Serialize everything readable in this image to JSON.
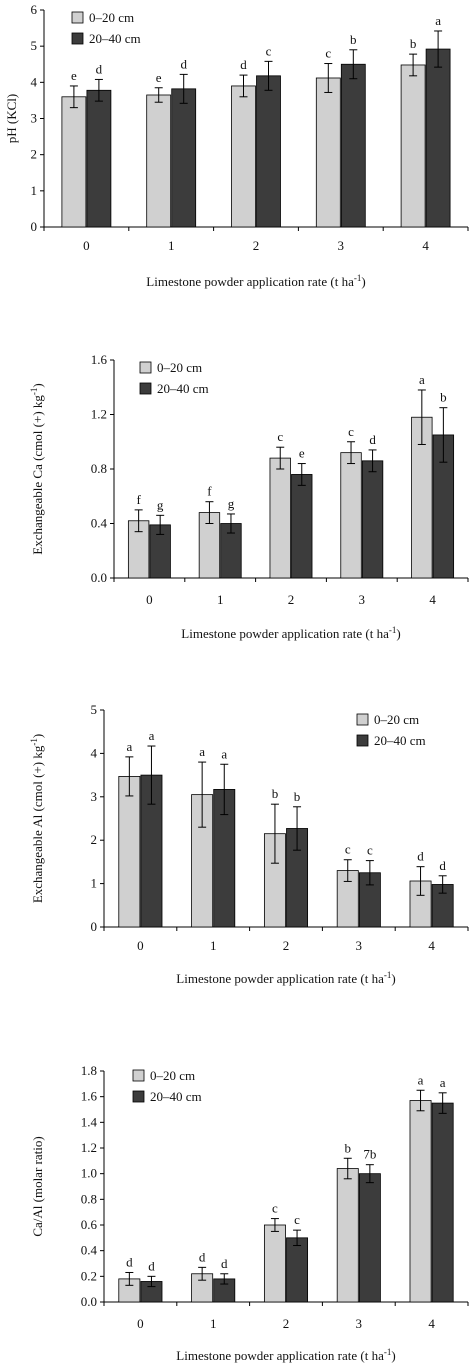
{
  "colors": {
    "series_1": "#d0d0d0",
    "series_2": "#3c3c3c",
    "axis": "#000000"
  },
  "chart_data": [
    {
      "type": "bar",
      "ylabel": "pH (KCl)",
      "xlabel": "Limestone powder application rate (t ha",
      "xlabel_sup": "-1",
      "xlabel_end": ")",
      "categories": [
        "0",
        "1",
        "2",
        "3",
        "4"
      ],
      "ylim": [
        0,
        6
      ],
      "yticks": [
        "0",
        "1",
        "2",
        "3",
        "4",
        "5",
        "6"
      ],
      "legend_position": "top-left",
      "series": [
        {
          "name": "0–20 cm",
          "values": [
            3.6,
            3.65,
            3.9,
            4.12,
            4.48
          ],
          "errors": [
            0.3,
            0.2,
            0.3,
            0.4,
            0.3
          ],
          "letters": [
            "e",
            "e",
            "d",
            "c",
            "b"
          ]
        },
        {
          "name": "20–40 cm",
          "values": [
            3.78,
            3.82,
            4.18,
            4.5,
            4.92
          ],
          "errors": [
            0.3,
            0.4,
            0.4,
            0.4,
            0.5
          ],
          "letters": [
            "d",
            "d",
            "c",
            "b",
            "a"
          ]
        }
      ]
    },
    {
      "type": "bar",
      "ylabel": "Exchangeable Ca (cmol (+) kg",
      "ylabel_sup": "-1",
      "ylabel_end": ")",
      "xlabel": "Limestone powder application rate (t ha",
      "xlabel_sup": "-1",
      "xlabel_end": ")",
      "categories": [
        "0",
        "1",
        "2",
        "3",
        "4"
      ],
      "ylim": [
        0,
        1.6
      ],
      "yticks": [
        "0.0",
        "0.4",
        "0.8",
        "1.2",
        "1.6"
      ],
      "legend_position": "top-left",
      "series": [
        {
          "name": "0–20 cm",
          "values": [
            0.42,
            0.48,
            0.88,
            0.92,
            1.18
          ],
          "errors": [
            0.08,
            0.08,
            0.08,
            0.08,
            0.2
          ],
          "letters": [
            "f",
            "f",
            "c",
            "c",
            "a"
          ]
        },
        {
          "name": "20–40 cm",
          "values": [
            0.39,
            0.4,
            0.76,
            0.86,
            1.05
          ],
          "errors": [
            0.07,
            0.07,
            0.08,
            0.08,
            0.2
          ],
          "letters": [
            "g",
            "g",
            "e",
            "d",
            "b"
          ]
        }
      ]
    },
    {
      "type": "bar",
      "ylabel": "Exchangeable Al (cmol (+) kg",
      "ylabel_sup": "-1",
      "ylabel_end": ")",
      "xlabel": "Limestone powder application rate (t ha",
      "xlabel_sup": "-1",
      "xlabel_end": ")",
      "categories": [
        "0",
        "1",
        "2",
        "3",
        "4"
      ],
      "ylim": [
        0,
        5
      ],
      "yticks": [
        "0",
        "1",
        "2",
        "3",
        "4",
        "5"
      ],
      "legend_position": "top-right",
      "series": [
        {
          "name": "0–20 cm",
          "values": [
            3.47,
            3.05,
            2.15,
            1.3,
            1.06
          ],
          "errors": [
            0.45,
            0.75,
            0.68,
            0.25,
            0.33
          ],
          "letters": [
            "a",
            "a",
            "b",
            "c",
            "d"
          ]
        },
        {
          "name": "20–40 cm",
          "values": [
            3.5,
            3.17,
            2.27,
            1.25,
            0.98
          ],
          "errors": [
            0.67,
            0.58,
            0.5,
            0.28,
            0.2
          ],
          "letters": [
            "a",
            "a",
            "b",
            "c",
            "d"
          ]
        }
      ]
    },
    {
      "type": "bar",
      "ylabel": "Ca/Al (molar ratio)",
      "xlabel": "Limestone powder application rate (t ha",
      "xlabel_sup": "-1",
      "xlabel_end": ")",
      "categories": [
        "0",
        "1",
        "2",
        "3",
        "4"
      ],
      "ylim": [
        0,
        1.8
      ],
      "yticks": [
        "0.0",
        "0.2",
        "0.4",
        "0.6",
        "0.8",
        "1.0",
        "1.2",
        "1.4",
        "1.6",
        "1.8"
      ],
      "legend_position": "top-left",
      "series": [
        {
          "name": "0–20 cm",
          "values": [
            0.18,
            0.22,
            0.6,
            1.04,
            1.57
          ],
          "errors": [
            0.05,
            0.05,
            0.05,
            0.08,
            0.08
          ],
          "letters": [
            "d",
            "d",
            "c",
            "b",
            "a"
          ]
        },
        {
          "name": "20–40 cm",
          "values": [
            0.16,
            0.18,
            0.5,
            1.0,
            1.55
          ],
          "errors": [
            0.04,
            0.04,
            0.06,
            0.07,
            0.08
          ],
          "letters": [
            "d",
            "d",
            "c",
            "7b",
            "a"
          ]
        }
      ]
    }
  ]
}
